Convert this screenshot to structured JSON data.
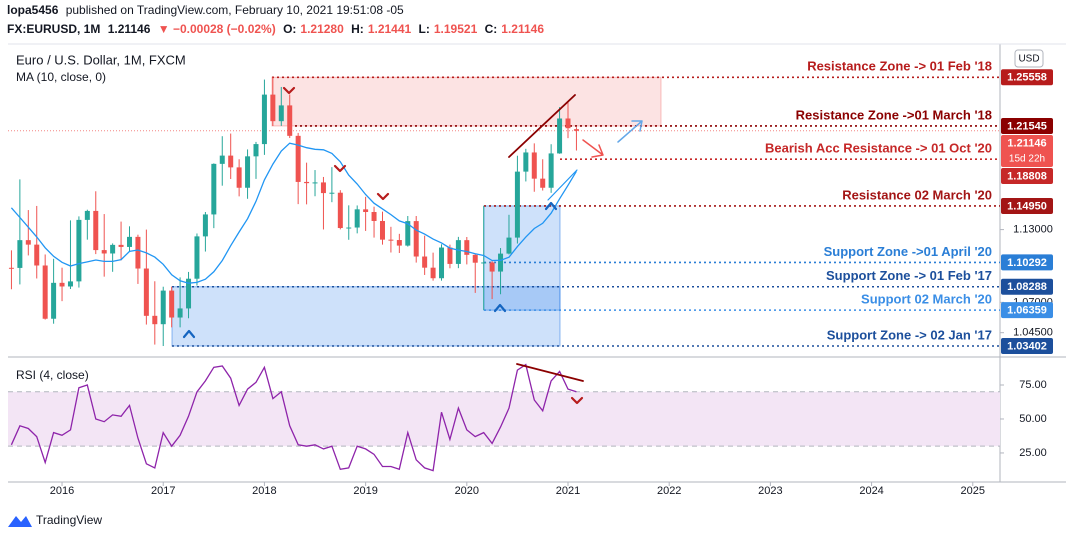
{
  "header": {
    "author": "lopa5456",
    "published": " published on TradingView.com, February 10, 2021 19:51:08 -05",
    "symbol": "FX:EURUSD, 1M",
    "last": "1.21146",
    "change": "▼ −0.00028 (−0.02%)",
    "ohlc": [
      {
        "label": "O:",
        "value": "1.21280"
      },
      {
        "label": "H:",
        "value": "1.21441"
      },
      {
        "label": "L:",
        "value": "1.19521"
      },
      {
        "label": "C:",
        "value": "1.21146"
      }
    ]
  },
  "footer": {
    "brand": "TradingView"
  },
  "chart_data": [
    {
      "type": "candlestick",
      "title": "Euro / U.S. Dollar, 1M, FXCM",
      "currency": "USD",
      "x": [
        2015.5,
        2015.5833,
        2015.6667,
        2015.75,
        2015.8333,
        2015.9167,
        2016,
        2016.0833,
        2016.1667,
        2016.25,
        2016.3333,
        2016.4167,
        2016.5,
        2016.5833,
        2016.6667,
        2016.75,
        2016.8333,
        2016.9167,
        2017,
        2017.0833,
        2017.1667,
        2017.25,
        2017.3333,
        2017.4167,
        2017.5,
        2017.5833,
        2017.6667,
        2017.75,
        2017.8333,
        2017.9167,
        2018,
        2018.0833,
        2018.1667,
        2018.25,
        2018.3333,
        2018.4167,
        2018.5,
        2018.5833,
        2018.6667,
        2018.75,
        2018.8333,
        2018.9167,
        2019,
        2019.0833,
        2019.1667,
        2019.25,
        2019.3333,
        2019.4167,
        2019.5,
        2019.5833,
        2019.6667,
        2019.75,
        2019.8333,
        2019.9167,
        2020,
        2020.0833,
        2020.1667,
        2020.25,
        2020.3333,
        2020.4167,
        2020.5,
        2020.5833,
        2020.6667,
        2020.75,
        2020.8333,
        2020.9167,
        2021,
        2021.0833
      ],
      "open": [
        1.0985,
        1.0984,
        1.1213,
        1.1176,
        1.1004,
        1.0565,
        1.0861,
        1.0831,
        1.0873,
        1.138,
        1.1454,
        1.1131,
        1.1103,
        1.1174,
        1.1157,
        1.124,
        1.0979,
        1.0589,
        1.052,
        1.0797,
        1.0575,
        1.065,
        1.0895,
        1.1244,
        1.1425,
        1.1842,
        1.191,
        1.1813,
        1.1645,
        1.1904,
        1.2005,
        1.2413,
        1.2194,
        1.2324,
        1.2073,
        1.1693,
        1.1683,
        1.1689,
        1.1601,
        1.1604,
        1.1313,
        1.1317,
        1.1467,
        1.1445,
        1.1371,
        1.1217,
        1.1214,
        1.1168,
        1.137,
        1.1078,
        1.0986,
        1.0899,
        1.1152,
        1.1017,
        1.1213,
        1.1092,
        1.1027,
        1.1029,
        1.0954,
        1.1102,
        1.1234,
        1.1778,
        1.1936,
        1.172,
        1.1645,
        1.1928,
        1.2216,
        1.2128
      ],
      "high": [
        1.1129,
        1.1714,
        1.1461,
        1.1495,
        1.1095,
        1.1059,
        1.0986,
        1.1376,
        1.1409,
        1.1464,
        1.1616,
        1.1428,
        1.1186,
        1.1366,
        1.1327,
        1.1258,
        1.13,
        1.0874,
        1.0829,
        1.0829,
        1.0906,
        1.0951,
        1.1268,
        1.1445,
        1.1846,
        1.207,
        1.2092,
        1.188,
        1.1961,
        1.2023,
        1.2537,
        1.2556,
        1.2476,
        1.2414,
        1.2097,
        1.1852,
        1.1791,
        1.1734,
        1.1815,
        1.1625,
        1.15,
        1.1499,
        1.157,
        1.1489,
        1.1448,
        1.1323,
        1.1265,
        1.1412,
        1.1412,
        1.125,
        1.111,
        1.1179,
        1.1176,
        1.124,
        1.1239,
        1.1096,
        1.1496,
        1.104,
        1.1148,
        1.1422,
        1.1909,
        1.1966,
        1.2011,
        1.188,
        1.2004,
        1.231,
        1.2349,
        1.21441
      ],
      "low": [
        1.0808,
        1.0848,
        1.1087,
        1.0897,
        1.0558,
        1.0524,
        1.071,
        1.081,
        1.0822,
        1.1217,
        1.1098,
        1.0912,
        1.0952,
        1.1046,
        1.1123,
        1.0852,
        1.0517,
        1.0352,
        1.034,
        1.0494,
        1.0494,
        1.0569,
        1.0839,
        1.1119,
        1.1312,
        1.1662,
        1.1717,
        1.1574,
        1.1554,
        1.1718,
        1.1916,
        1.2154,
        1.2155,
        1.2055,
        1.151,
        1.1508,
        1.1575,
        1.1301,
        1.1526,
        1.1302,
        1.1216,
        1.1269,
        1.1289,
        1.1234,
        1.1176,
        1.1111,
        1.1107,
        1.116,
        1.1028,
        1.0926,
        1.0879,
        1.0879,
        1.0981,
        1.0982,
        1.1013,
        1.0778,
        1.0636,
        1.0727,
        1.0767,
        1.1095,
        1.1185,
        1.1697,
        1.1612,
        1.1622,
        1.1603,
        1.1925,
        1.2054,
        1.19521
      ],
      "close": [
        1.0984,
        1.1213,
        1.1176,
        1.1004,
        1.0565,
        1.0861,
        1.0831,
        1.0873,
        1.138,
        1.1454,
        1.1131,
        1.1103,
        1.1174,
        1.1157,
        1.124,
        1.0979,
        1.0589,
        1.052,
        1.0797,
        1.0575,
        1.065,
        1.0895,
        1.1244,
        1.1425,
        1.1842,
        1.191,
        1.1813,
        1.1645,
        1.1904,
        1.2005,
        1.2413,
        1.2194,
        1.2324,
        1.2073,
        1.1693,
        1.1683,
        1.1689,
        1.1601,
        1.1604,
        1.1313,
        1.1317,
        1.1467,
        1.1445,
        1.1371,
        1.1217,
        1.1214,
        1.1168,
        1.137,
        1.1078,
        1.0986,
        1.0899,
        1.1152,
        1.1017,
        1.1213,
        1.1092,
        1.1027,
        1.1029,
        1.0954,
        1.1102,
        1.1234,
        1.1778,
        1.1936,
        1.172,
        1.1645,
        1.1928,
        1.2216,
        1.2136,
        1.21146
      ],
      "up_color": "#26a69a",
      "down_color": "#ef5350",
      "overlay": {
        "name": "MA (10, close, 0)",
        "color": "#2196f3",
        "values": [
          1.148,
          1.14,
          1.132,
          1.124,
          1.115,
          1.108,
          1.103,
          1.1,
          1.102,
          1.1034,
          1.1049,
          1.1038,
          1.1038,
          1.1053,
          1.112,
          1.1132,
          1.1108,
          1.1073,
          1.1014,
          1.0927,
          1.0878,
          1.0858,
          1.0865,
          1.0891,
          1.0952,
          1.1045,
          1.1167,
          1.128,
          1.139,
          1.1533,
          1.171,
          1.184,
          1.1948,
          1.2012,
          1.1997,
          1.1975,
          1.1962,
          1.1958,
          1.1928,
          1.1859,
          1.1749,
          1.1676,
          1.1589,
          1.1518,
          1.1471,
          1.1424,
          1.1372,
          1.1349,
          1.1296,
          1.1263,
          1.1222,
          1.119,
          1.1147,
          1.1131,
          1.1119,
          1.11,
          1.1086,
          1.1045,
          1.1047,
          1.1072,
          1.116,
          1.1238,
          1.1309,
          1.1352,
          1.1435,
          1.1554,
          1.1665,
          1.1781
        ]
      },
      "levels": [
        {
          "label": "Resistance Zone -> 01 Feb '18",
          "price": 1.25558,
          "price_label": "1.25558",
          "color": "#b71c1c"
        },
        {
          "label": "Resistance Zone ->01 March '18",
          "price": 1.21545,
          "price_label": "1.21545",
          "color": "#8b0000"
        },
        {
          "label": "Bearish Acc Resistance -> 01 Oct '20",
          "price": 1.18808,
          "price_label": "1.18808",
          "color": "#c62828"
        },
        {
          "label": "Resistance 02 March '20",
          "price": 1.1495,
          "price_label": "1.14950",
          "color": "#a31515"
        },
        {
          "label": "Support Zone ->01 April '20",
          "price": 1.10292,
          "price_label": "1.10292",
          "color": "#2a7ed6"
        },
        {
          "label": "Support Zone -> 01 Feb '17",
          "price": 1.08288,
          "price_label": "1.08288",
          "color": "#1c4f9c"
        },
        {
          "label": "Support 02 March '20",
          "price": 1.06359,
          "price_label": "1.06359",
          "color": "#3a8ee6"
        },
        {
          "label": "Support Zone -> 02 Jan '17",
          "price": 1.03402,
          "price_label": "1.03402",
          "color": "#1c4f9c"
        }
      ],
      "last_price": 1.21146,
      "last_price_label": "1.21146",
      "countdown": "15d 22h",
      "last_color": "#ef5350",
      "xlim": [
        2015.466,
        2025.269
      ],
      "xticks": [
        2016,
        2017,
        2018,
        2019,
        2020,
        2021,
        2022,
        2023,
        2024,
        2025
      ],
      "ylim": [
        1.0266,
        1.2822
      ],
      "yticks": [
        {
          "value": 1.045,
          "label": "1.04500"
        },
        {
          "value": 1.07,
          "label": "1.07000"
        },
        {
          "value": 1.13,
          "label": "1.13000"
        }
      ]
    },
    {
      "type": "line",
      "title": "RSI (4, close)",
      "color": "#8e24aa",
      "values": [
        31,
        45,
        43,
        37,
        18,
        40,
        38,
        42,
        73,
        75,
        50,
        48,
        53,
        52,
        60,
        36,
        17,
        14,
        40,
        30,
        38,
        52,
        70,
        78,
        88,
        89,
        80,
        60,
        72,
        77,
        88,
        65,
        70,
        45,
        31,
        30,
        31,
        28,
        30,
        13,
        14,
        30,
        28,
        24,
        15,
        15,
        13,
        40,
        20,
        14,
        12,
        55,
        35,
        58,
        42,
        37,
        40,
        32,
        44,
        58,
        86,
        90,
        64,
        56,
        78,
        85,
        72,
        70
      ],
      "band": [
        30,
        70
      ],
      "band_color": "#f3e5f5",
      "ylim": [
        5.1,
        93.4
      ],
      "yticks": [
        {
          "value": 25,
          "label": "25.00"
        },
        {
          "value": 50,
          "label": "50.00"
        },
        {
          "value": 75,
          "label": "75.00"
        }
      ]
    }
  ]
}
